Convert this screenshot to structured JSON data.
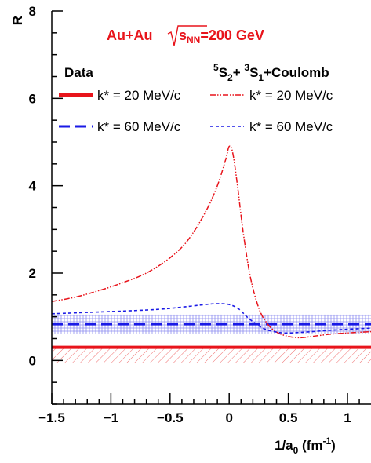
{
  "chart_data": {
    "type": "line",
    "title": "Au+Au",
    "energy_label": "s",
    "energy_sub": "NN",
    "energy_value": "=200 GeV",
    "xlabel": "1/a",
    "xlabel_sub": "0",
    "xlabel_unit_pre": " (fm",
    "xlabel_unit_sup": "-1",
    "xlabel_unit_post": ")",
    "ylabel": "R",
    "xlim": [
      -1.5,
      1.2
    ],
    "ylim": [
      -1.0,
      8.0
    ],
    "x_ticks": [
      {
        "value": -1.5,
        "label": "−1.5"
      },
      {
        "value": -1.0,
        "label": "−1"
      },
      {
        "value": -0.5,
        "label": "−0.5"
      },
      {
        "value": 0.0,
        "label": "0"
      },
      {
        "value": 0.5,
        "label": "0.5"
      },
      {
        "value": 1.0,
        "label": "1"
      }
    ],
    "y_ticks": [
      {
        "value": 0,
        "label": "0"
      },
      {
        "value": 2,
        "label": "2"
      },
      {
        "value": 4,
        "label": "4"
      },
      {
        "value": 6,
        "label": "6"
      },
      {
        "value": 8,
        "label": "8"
      }
    ],
    "legend": {
      "data_header": "Data",
      "model_header_parts": [
        "5",
        "S",
        "2",
        "+ ",
        "3",
        "S",
        "1",
        "+Coulomb"
      ],
      "entries": [
        {
          "label": "k* = 20 MeV/c",
          "series": "data-20"
        },
        {
          "label": "k* = 60 MeV/c",
          "series": "data-60"
        },
        {
          "label": "k* = 20 MeV/c",
          "series": "model-20"
        },
        {
          "label": "k* = 60 MeV/c",
          "series": "model-60"
        }
      ]
    },
    "colors": {
      "red": "#e8141b",
      "blue": "#1a1ae6",
      "band_blue": "#8c8cf0",
      "band_red": "#f07070"
    },
    "data_bands": [
      {
        "name": "data-20",
        "value": 0.3,
        "band": [
          -0.05,
          0.3
        ],
        "style": "solid",
        "color": "red"
      },
      {
        "name": "data-60",
        "value": 0.83,
        "band": [
          0.6,
          1.05
        ],
        "style": "dashed",
        "color": "blue"
      }
    ],
    "series": [
      {
        "name": "model-20",
        "style": "dash-dot-dot",
        "color": "red",
        "x": [
          -1.5,
          -1.3,
          -1.1,
          -0.9,
          -0.7,
          -0.5,
          -0.35,
          -0.2,
          -0.1,
          -0.03,
          0.0,
          0.03,
          0.07,
          0.12,
          0.18,
          0.25,
          0.32,
          0.4,
          0.5,
          0.6,
          0.7,
          0.85,
          1.0,
          1.2
        ],
        "values": [
          1.35,
          1.45,
          1.6,
          1.78,
          2.0,
          2.35,
          2.75,
          3.4,
          4.0,
          4.6,
          4.9,
          4.75,
          4.0,
          2.9,
          1.9,
          1.2,
          0.85,
          0.65,
          0.55,
          0.52,
          0.55,
          0.6,
          0.63,
          0.66
        ]
      },
      {
        "name": "model-60",
        "style": "short-dash",
        "color": "blue",
        "x": [
          -1.5,
          -1.2,
          -0.9,
          -0.6,
          -0.4,
          -0.2,
          -0.1,
          0.0,
          0.08,
          0.15,
          0.22,
          0.3,
          0.4,
          0.5,
          0.7,
          0.9,
          1.2
        ],
        "values": [
          1.07,
          1.1,
          1.13,
          1.17,
          1.22,
          1.28,
          1.3,
          1.28,
          1.18,
          1.0,
          0.85,
          0.72,
          0.65,
          0.63,
          0.66,
          0.7,
          0.74
        ]
      }
    ]
  }
}
